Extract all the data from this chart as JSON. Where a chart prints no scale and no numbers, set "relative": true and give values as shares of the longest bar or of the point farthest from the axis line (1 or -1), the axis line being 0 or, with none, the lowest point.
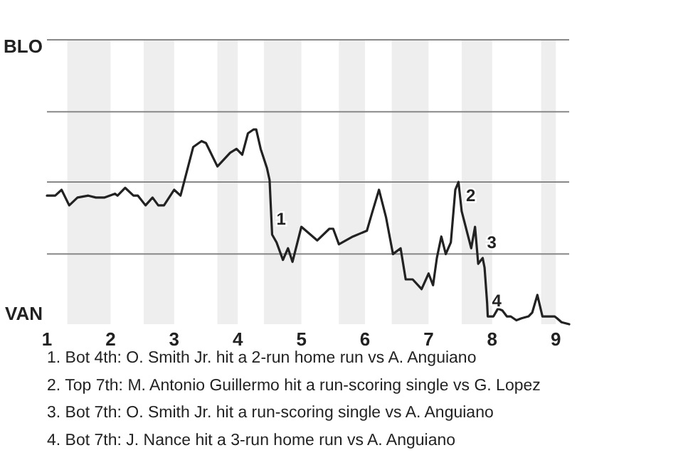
{
  "chart_data": {
    "type": "line",
    "relative": true,
    "x": [
      1.0,
      1.13,
      1.23,
      1.35,
      1.48,
      1.65,
      1.77,
      1.9,
      2.07,
      2.11,
      2.23,
      2.36,
      2.43,
      2.55,
      2.66,
      2.75,
      2.84,
      3.0,
      3.1,
      3.3,
      3.43,
      3.5,
      3.68,
      3.88,
      3.98,
      4.07,
      4.16,
      4.25,
      4.29,
      4.36,
      4.46,
      4.5,
      4.54,
      4.61,
      4.71,
      4.79,
      4.86,
      5.0,
      5.25,
      5.44,
      5.5,
      5.59,
      5.81,
      6.03,
      6.11,
      6.22,
      6.33,
      6.44,
      6.56,
      6.64,
      6.75,
      6.89,
      7.0,
      7.07,
      7.13,
      7.2,
      7.27,
      7.35,
      7.42,
      7.47,
      7.52,
      7.67,
      7.73,
      7.78,
      7.85,
      7.88,
      7.92,
      7.93,
      8.02,
      8.09,
      8.16,
      8.23,
      8.29,
      8.38,
      8.46,
      8.57,
      8.63,
      8.71,
      8.79,
      8.91,
      8.98,
      9.02,
      9.09,
      9.21
    ],
    "series": [
      {
        "color": "#222222",
        "values": [
          0.66,
          0.66,
          0.69,
          0.61,
          0.65,
          0.66,
          0.65,
          0.65,
          0.67,
          0.66,
          0.7,
          0.66,
          0.66,
          0.61,
          0.65,
          0.61,
          0.61,
          0.69,
          0.66,
          0.91,
          0.94,
          0.93,
          0.81,
          0.88,
          0.9,
          0.87,
          0.98,
          1,
          1,
          0.9,
          0.8,
          0.74,
          0.46,
          0.42,
          0.33,
          0.39,
          0.32,
          0.5,
          0.43,
          0.49,
          0.49,
          0.41,
          0.45,
          0.48,
          0.57,
          0.69,
          0.55,
          0.36,
          0.39,
          0.23,
          0.23,
          0.18,
          0.26,
          0.2,
          0.34,
          0.45,
          0.36,
          0.42,
          0.69,
          0.73,
          0.58,
          0.39,
          0.5,
          0.31,
          0.34,
          0.29,
          0.11,
          0.04,
          0.04,
          0.08,
          0.07,
          0.04,
          0.04,
          0.02,
          0.03,
          0.04,
          0.06,
          0.15,
          0.04,
          0.04,
          0.04,
          0.03,
          0.01,
          0
        ]
      }
    ],
    "xlim": [
      1,
      9.21
    ],
    "xticks": [
      1,
      2,
      3,
      4,
      5,
      6,
      7,
      8,
      9
    ],
    "marker": "none",
    "line_style": "solid",
    "ref_lines": [
      {
        "axis": "y",
        "value": 0.36,
        "color": "#888888"
      },
      {
        "axis": "y",
        "value": 0.73,
        "color": "#888888"
      },
      {
        "axis": "y",
        "value": 1.09,
        "color": "#888888"
      },
      {
        "axis": "y",
        "value": 1.46,
        "color": "#888888"
      }
    ],
    "bands": [
      {
        "axis": "x",
        "from": 1.32,
        "to": 2,
        "color": "#eeeeee"
      },
      {
        "axis": "x",
        "from": 2.52,
        "to": 3,
        "color": "#eeeeee"
      },
      {
        "axis": "x",
        "from": 3.68,
        "to": 4,
        "color": "#eeeeee"
      },
      {
        "axis": "x",
        "from": 4.41,
        "to": 5,
        "color": "#eeeeee"
      },
      {
        "axis": "x",
        "from": 5.59,
        "to": 6,
        "color": "#eeeeee"
      },
      {
        "axis": "x",
        "from": 6.42,
        "to": 7,
        "color": "#eeeeee"
      },
      {
        "axis": "x",
        "from": 7.52,
        "to": 8,
        "color": "#eeeeee"
      },
      {
        "axis": "x",
        "from": 8.77,
        "to": 9,
        "color": "#eeeeee"
      }
    ],
    "annotations": [
      {
        "text": "1",
        "x": 4.54,
        "y": 0.46
      },
      {
        "text": "2",
        "x": 7.52,
        "y": 0.58
      },
      {
        "text": "3",
        "x": 7.85,
        "y": 0.34
      },
      {
        "text": "4",
        "x": 7.93,
        "y": 0.04
      },
      "BLO",
      "VAN",
      "1. Bot 4th: O. Smith Jr. hit a 2-run home run vs A. Anguiano",
      "2. Top 7th: M. Antonio Guillermo hit a run-scoring single vs G. Lopez",
      "3. Bot 7th: O. Smith Jr. hit a run-scoring single vs A. Anguiano",
      "4. Bot 7th: J. Nance hit a 3-run home run vs A. Anguiano"
    ]
  }
}
